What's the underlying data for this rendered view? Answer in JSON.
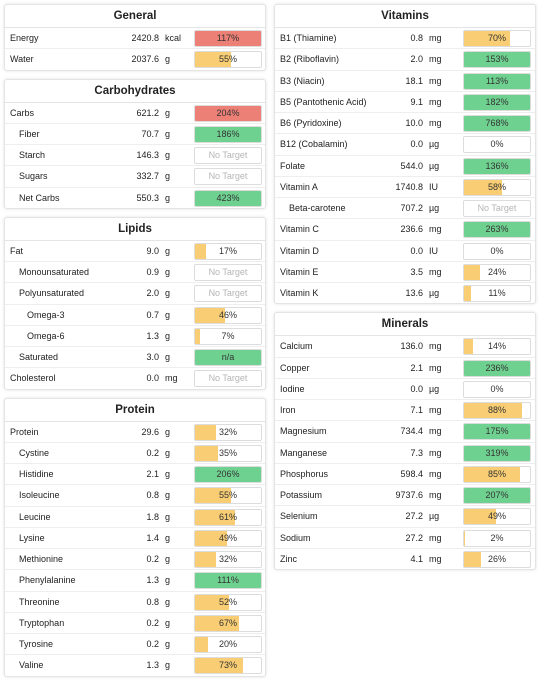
{
  "colors": {
    "over": "#ec7f76",
    "good": "#6fd190",
    "partial": "#f8cd73",
    "na": "#6fd190"
  },
  "columns": [
    [
      {
        "title": "General",
        "rows": [
          {
            "name": "Energy",
            "amount": "2420.8",
            "unit": "kcal",
            "pct": "117%",
            "fill": 1,
            "status": "over",
            "indent": 0
          },
          {
            "name": "Water",
            "amount": "2037.6",
            "unit": "g",
            "pct": "55%",
            "fill": 0.55,
            "status": "partial",
            "indent": 0
          }
        ]
      },
      {
        "title": "Carbohydrates",
        "rows": [
          {
            "name": "Carbs",
            "amount": "621.2",
            "unit": "g",
            "pct": "204%",
            "fill": 1,
            "status": "over",
            "indent": 0
          },
          {
            "name": "Fiber",
            "amount": "70.7",
            "unit": "g",
            "pct": "186%",
            "fill": 1,
            "status": "good",
            "indent": 1
          },
          {
            "name": "Starch",
            "amount": "146.3",
            "unit": "g",
            "pct": "No Target",
            "fill": 0,
            "status": "none",
            "indent": 1
          },
          {
            "name": "Sugars",
            "amount": "332.7",
            "unit": "g",
            "pct": "No Target",
            "fill": 0,
            "status": "none",
            "indent": 1
          },
          {
            "name": "Net Carbs",
            "amount": "550.3",
            "unit": "g",
            "pct": "423%",
            "fill": 1,
            "status": "good",
            "indent": 1
          }
        ]
      },
      {
        "title": "Lipids",
        "rows": [
          {
            "name": "Fat",
            "amount": "9.0",
            "unit": "g",
            "pct": "17%",
            "fill": 0.17,
            "status": "partial",
            "indent": 0
          },
          {
            "name": "Monounsaturated",
            "amount": "0.9",
            "unit": "g",
            "pct": "No Target",
            "fill": 0,
            "status": "none",
            "indent": 1
          },
          {
            "name": "Polyunsaturated",
            "amount": "2.0",
            "unit": "g",
            "pct": "No Target",
            "fill": 0,
            "status": "none",
            "indent": 1
          },
          {
            "name": "Omega-3",
            "amount": "0.7",
            "unit": "g",
            "pct": "46%",
            "fill": 0.46,
            "status": "partial",
            "indent": 2
          },
          {
            "name": "Omega-6",
            "amount": "1.3",
            "unit": "g",
            "pct": "7%",
            "fill": 0.07,
            "status": "partial",
            "indent": 2
          },
          {
            "name": "Saturated",
            "amount": "3.0",
            "unit": "g",
            "pct": "n/a",
            "fill": 1,
            "status": "na",
            "indent": 1
          },
          {
            "name": "Cholesterol",
            "amount": "0.0",
            "unit": "mg",
            "pct": "No Target",
            "fill": 0,
            "status": "none",
            "indent": 0
          }
        ]
      },
      {
        "title": "Protein",
        "rows": [
          {
            "name": "Protein",
            "amount": "29.6",
            "unit": "g",
            "pct": "32%",
            "fill": 0.32,
            "status": "partial",
            "indent": 0
          },
          {
            "name": "Cystine",
            "amount": "0.2",
            "unit": "g",
            "pct": "35%",
            "fill": 0.35,
            "status": "partial",
            "indent": 1
          },
          {
            "name": "Histidine",
            "amount": "2.1",
            "unit": "g",
            "pct": "206%",
            "fill": 1,
            "status": "good",
            "indent": 1
          },
          {
            "name": "Isoleucine",
            "amount": "0.8",
            "unit": "g",
            "pct": "55%",
            "fill": 0.55,
            "status": "partial",
            "indent": 1
          },
          {
            "name": "Leucine",
            "amount": "1.8",
            "unit": "g",
            "pct": "61%",
            "fill": 0.61,
            "status": "partial",
            "indent": 1
          },
          {
            "name": "Lysine",
            "amount": "1.4",
            "unit": "g",
            "pct": "49%",
            "fill": 0.49,
            "status": "partial",
            "indent": 1
          },
          {
            "name": "Methionine",
            "amount": "0.2",
            "unit": "g",
            "pct": "32%",
            "fill": 0.32,
            "status": "partial",
            "indent": 1
          },
          {
            "name": "Phenylalanine",
            "amount": "1.3",
            "unit": "g",
            "pct": "111%",
            "fill": 1,
            "status": "good",
            "indent": 1
          },
          {
            "name": "Threonine",
            "amount": "0.8",
            "unit": "g",
            "pct": "52%",
            "fill": 0.52,
            "status": "partial",
            "indent": 1
          },
          {
            "name": "Tryptophan",
            "amount": "0.2",
            "unit": "g",
            "pct": "67%",
            "fill": 0.67,
            "status": "partial",
            "indent": 1
          },
          {
            "name": "Tyrosine",
            "amount": "0.2",
            "unit": "g",
            "pct": "20%",
            "fill": 0.2,
            "status": "partial",
            "indent": 1
          },
          {
            "name": "Valine",
            "amount": "1.3",
            "unit": "g",
            "pct": "73%",
            "fill": 0.73,
            "status": "partial",
            "indent": 1
          }
        ]
      }
    ],
    [
      {
        "title": "Vitamins",
        "rows": [
          {
            "name": "B1 (Thiamine)",
            "amount": "0.8",
            "unit": "mg",
            "pct": "70%",
            "fill": 0.7,
            "status": "partial",
            "indent": 0
          },
          {
            "name": "B2 (Riboflavin)",
            "amount": "2.0",
            "unit": "mg",
            "pct": "153%",
            "fill": 1,
            "status": "good",
            "indent": 0
          },
          {
            "name": "B3 (Niacin)",
            "amount": "18.1",
            "unit": "mg",
            "pct": "113%",
            "fill": 1,
            "status": "good",
            "indent": 0
          },
          {
            "name": "B5 (Pantothenic Acid)",
            "amount": "9.1",
            "unit": "mg",
            "pct": "182%",
            "fill": 1,
            "status": "good",
            "indent": 0
          },
          {
            "name": "B6 (Pyridoxine)",
            "amount": "10.0",
            "unit": "mg",
            "pct": "768%",
            "fill": 1,
            "status": "good",
            "indent": 0
          },
          {
            "name": "B12 (Cobalamin)",
            "amount": "0.0",
            "unit": "µg",
            "pct": "0%",
            "fill": 0,
            "status": "partial",
            "indent": 0
          },
          {
            "name": "Folate",
            "amount": "544.0",
            "unit": "µg",
            "pct": "136%",
            "fill": 1,
            "status": "good",
            "indent": 0
          },
          {
            "name": "Vitamin A",
            "amount": "1740.8",
            "unit": "IU",
            "pct": "58%",
            "fill": 0.58,
            "status": "partial",
            "indent": 0
          },
          {
            "name": "Beta-carotene",
            "amount": "707.2",
            "unit": "µg",
            "pct": "No Target",
            "fill": 0,
            "status": "none",
            "indent": 1
          },
          {
            "name": "Vitamin C",
            "amount": "236.6",
            "unit": "mg",
            "pct": "263%",
            "fill": 1,
            "status": "good",
            "indent": 0
          },
          {
            "name": "Vitamin D",
            "amount": "0.0",
            "unit": "IU",
            "pct": "0%",
            "fill": 0,
            "status": "partial",
            "indent": 0
          },
          {
            "name": "Vitamin E",
            "amount": "3.5",
            "unit": "mg",
            "pct": "24%",
            "fill": 0.24,
            "status": "partial",
            "indent": 0
          },
          {
            "name": "Vitamin K",
            "amount": "13.6",
            "unit": "µg",
            "pct": "11%",
            "fill": 0.11,
            "status": "partial",
            "indent": 0
          }
        ]
      },
      {
        "title": "Minerals",
        "rows": [
          {
            "name": "Calcium",
            "amount": "136.0",
            "unit": "mg",
            "pct": "14%",
            "fill": 0.14,
            "status": "partial",
            "indent": 0
          },
          {
            "name": "Copper",
            "amount": "2.1",
            "unit": "mg",
            "pct": "236%",
            "fill": 1,
            "status": "good",
            "indent": 0
          },
          {
            "name": "Iodine",
            "amount": "0.0",
            "unit": "µg",
            "pct": "0%",
            "fill": 0,
            "status": "partial",
            "indent": 0
          },
          {
            "name": "Iron",
            "amount": "7.1",
            "unit": "mg",
            "pct": "88%",
            "fill": 0.88,
            "status": "partial",
            "indent": 0
          },
          {
            "name": "Magnesium",
            "amount": "734.4",
            "unit": "mg",
            "pct": "175%",
            "fill": 1,
            "status": "good",
            "indent": 0
          },
          {
            "name": "Manganese",
            "amount": "7.3",
            "unit": "mg",
            "pct": "319%",
            "fill": 1,
            "status": "good",
            "indent": 0
          },
          {
            "name": "Phosphorus",
            "amount": "598.4",
            "unit": "mg",
            "pct": "85%",
            "fill": 0.85,
            "status": "partial",
            "indent": 0
          },
          {
            "name": "Potassium",
            "amount": "9737.6",
            "unit": "mg",
            "pct": "207%",
            "fill": 1,
            "status": "good",
            "indent": 0
          },
          {
            "name": "Selenium",
            "amount": "27.2",
            "unit": "µg",
            "pct": "49%",
            "fill": 0.49,
            "status": "partial",
            "indent": 0
          },
          {
            "name": "Sodium",
            "amount": "27.2",
            "unit": "mg",
            "pct": "2%",
            "fill": 0.02,
            "status": "partial",
            "indent": 0
          },
          {
            "name": "Zinc",
            "amount": "4.1",
            "unit": "mg",
            "pct": "26%",
            "fill": 0.26,
            "status": "partial",
            "indent": 0
          }
        ]
      }
    ]
  ]
}
